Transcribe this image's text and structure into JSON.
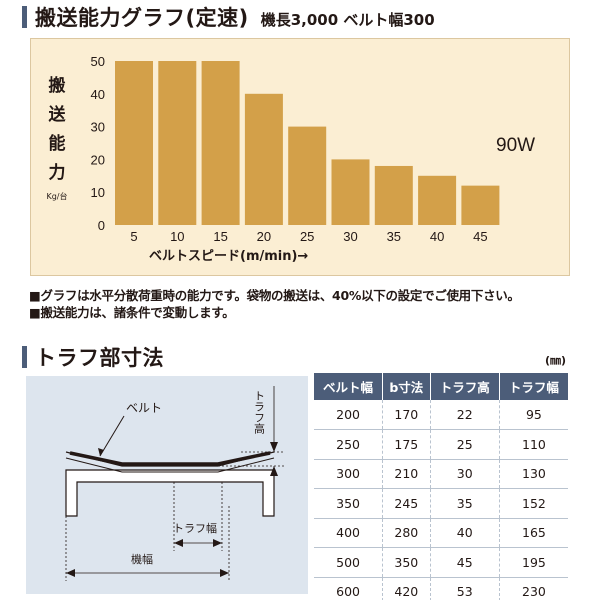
{
  "section1": {
    "title": "搬送能力グラフ(定速)",
    "subtitle": "機長3,000 ベルト幅300"
  },
  "chart_data": {
    "type": "bar",
    "categories": [
      "5",
      "10",
      "15",
      "20",
      "25",
      "30",
      "35",
      "40",
      "45"
    ],
    "values": [
      50,
      50,
      50,
      40,
      30,
      20,
      18,
      15,
      12
    ],
    "ylim": [
      0,
      50
    ],
    "yticks": [
      "0",
      "10",
      "20",
      "30",
      "40",
      "50"
    ],
    "ylabel_chars": [
      "搬",
      "送",
      "能",
      "力"
    ],
    "yunit": "Kg/台",
    "xlabel": "ベルトスピード(m/min)→",
    "annotation": "90W",
    "bar_color": "#d3a049",
    "background": "#fbeed3"
  },
  "notes": [
    "■グラフは水平分散荷重時の能力です。袋物の搬送は、40%以下の設定でご使用下さい。",
    "■搬送能力は、諸条件で変動します。"
  ],
  "section2": {
    "title": "トラフ部寸法",
    "unit": "(㎜)"
  },
  "diagram": {
    "belt_label": "ベルト",
    "trough_height_label": "トラフ高",
    "trough_width_label": "トラフ幅",
    "frame_width_label": "機幅"
  },
  "table": {
    "headers": [
      "ベルト幅",
      "b寸法",
      "トラフ高",
      "トラフ幅"
    ],
    "rows": [
      [
        "200",
        "170",
        "22",
        "95"
      ],
      [
        "250",
        "175",
        "25",
        "110"
      ],
      [
        "300",
        "210",
        "30",
        "130"
      ],
      [
        "350",
        "245",
        "35",
        "152"
      ],
      [
        "400",
        "280",
        "40",
        "165"
      ],
      [
        "500",
        "350",
        "45",
        "195"
      ],
      [
        "600",
        "420",
        "53",
        "230"
      ]
    ]
  },
  "colors": {
    "accent": "#4c5d79",
    "panel": "#dde5ee",
    "table_line": "#b9c3cf"
  }
}
